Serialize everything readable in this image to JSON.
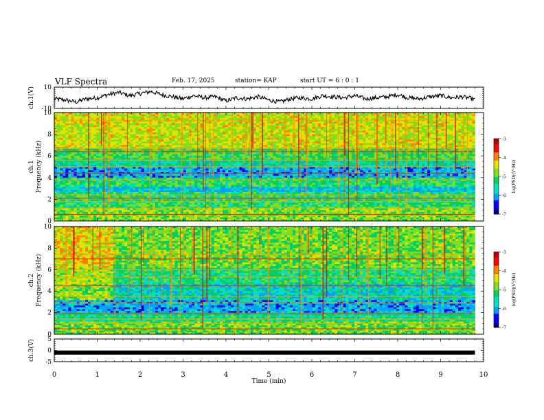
{
  "header": {
    "title": "VLF Spectra",
    "date": "Feb. 17, 2025",
    "station": "station= KAP",
    "start_ut": "start  UT =   6 : 0  : 1"
  },
  "chart_data": [
    {
      "type": "line",
      "panel": "ch1-waveform",
      "ylabel": "ch.1(V)",
      "ylim": [
        -10,
        10
      ],
      "yticks": [
        "10",
        "-10"
      ],
      "xlim": [
        0,
        10
      ],
      "series": [
        {
          "x": [
            0,
            0.25,
            0.5,
            0.75,
            1,
            1.25,
            1.5,
            1.75,
            2,
            2.25,
            2.5,
            2.75,
            3,
            3.25,
            3.5,
            3.75,
            4,
            4.25,
            4.5,
            4.75,
            5,
            5.25,
            5.5,
            5.75,
            6,
            6.25,
            6.5,
            6.75,
            7,
            7.25,
            7.5,
            7.75,
            8,
            8.25,
            8.5,
            8.75,
            9,
            9.25,
            9.5,
            9.75,
            9.8
          ],
          "values": [
            -1,
            -2,
            -4,
            -1,
            0,
            3,
            5,
            2,
            4,
            6,
            3,
            1,
            -1,
            2,
            0,
            1,
            -3,
            0,
            -1,
            1,
            -2,
            -4,
            -1,
            0,
            -1,
            2,
            1,
            0,
            2,
            -1,
            0,
            1,
            3,
            0,
            -1,
            1,
            2,
            0,
            1,
            -1,
            -2
          ]
        }
      ]
    },
    {
      "type": "heatmap",
      "panel": "ch1-spectrogram",
      "ylabel": "ch.1\nFrequency (kHz)",
      "ylim": [
        0,
        10
      ],
      "yticks": [
        "0",
        "2",
        "4",
        "6",
        "8",
        "10"
      ],
      "xlim": [
        0,
        9.8
      ],
      "colorbar": {
        "label": "log(PSD)(V²/Hz)",
        "range": [
          -7,
          -3
        ],
        "ticks": [
          "-3",
          "-4",
          "-5",
          "-6",
          "-7"
        ]
      }
    },
    {
      "type": "heatmap",
      "panel": "ch2-spectrogram",
      "ylabel": "ch.2\nFrequency (kHz)",
      "ylim": [
        0,
        10
      ],
      "yticks": [
        "0",
        "2",
        "4",
        "6",
        "8",
        "10"
      ],
      "xlim": [
        0,
        9.8
      ],
      "colorbar": {
        "label": "log(PSD)(V²/Hz)",
        "range": [
          -7,
          -3
        ],
        "ticks": [
          "-3",
          "-4",
          "-5",
          "-6",
          "-7"
        ]
      }
    },
    {
      "type": "line",
      "panel": "ch3-waveform",
      "ylabel": "ch.3(V)",
      "ylim": [
        -5,
        5
      ],
      "yticks": [
        "5",
        "0",
        "-5"
      ],
      "xlim": [
        0,
        10
      ],
      "series": [
        {
          "x": [
            0,
            9.8
          ],
          "values": [
            -1,
            -1
          ]
        }
      ]
    }
  ],
  "xaxis": {
    "label": "Time  (min)",
    "ticks": [
      "0",
      "1",
      "2",
      "3",
      "4",
      "5",
      "6",
      "7",
      "8",
      "9",
      "10"
    ],
    "range": [
      0,
      10
    ]
  },
  "colors": {
    "ink": "#000000",
    "colormap": [
      "#000070",
      "#0000ff",
      "#00a0ff",
      "#00e0c0",
      "#00d060",
      "#80e020",
      "#e8e000",
      "#ff8000",
      "#ff0000",
      "#b00000"
    ]
  }
}
